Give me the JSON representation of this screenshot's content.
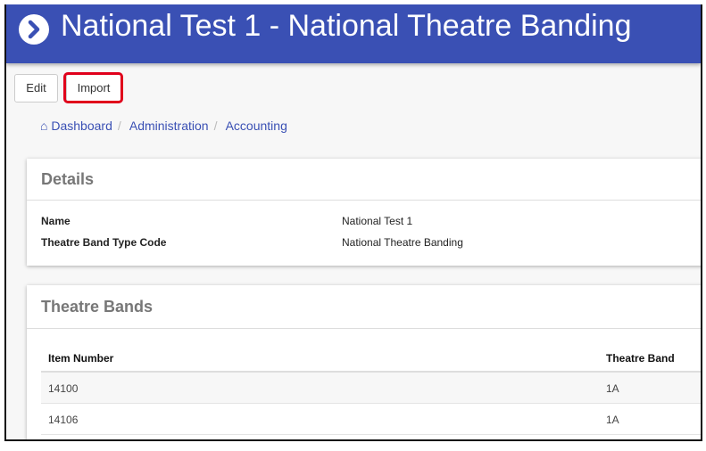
{
  "header": {
    "title": "National Test 1 - National Theatre Banding",
    "icon": "chevron-right-circle-icon",
    "color": "#3a50b4"
  },
  "toolbar": {
    "edit": "Edit",
    "import": "Import",
    "highlight_color": "#e0001b"
  },
  "breadcrumb": [
    {
      "label": "Dashboard",
      "icon": "home-icon"
    },
    {
      "label": "Administration"
    },
    {
      "label": "Accounting"
    }
  ],
  "details": {
    "title": "Details",
    "fields": [
      {
        "label": "Name",
        "value": "National Test 1"
      },
      {
        "label": "Theatre Band Type Code",
        "value": "National Theatre Banding"
      }
    ]
  },
  "bands": {
    "title": "Theatre Bands",
    "columns": [
      "Item Number",
      "Theatre Band"
    ],
    "rows": [
      [
        "14100",
        "1A"
      ],
      [
        "14106",
        "1A"
      ]
    ]
  }
}
